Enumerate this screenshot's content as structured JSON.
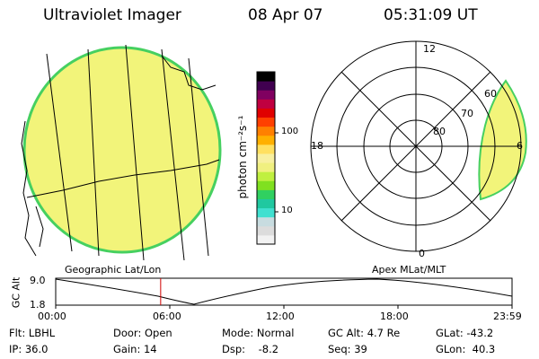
{
  "header": {
    "instrument": "Ultraviolet Imager",
    "date": "08 Apr 07",
    "time": "05:31:09 UT"
  },
  "colorbar": {
    "unit_label": "photon cm⁻²s⁻¹",
    "ticks": [
      "100",
      "10"
    ],
    "scale": "log",
    "colors": [
      "#f2f2f2",
      "#dcdcdc",
      "#c8dce0",
      "#40e0d0",
      "#20c8a0",
      "#30d060",
      "#80e020",
      "#c0f040",
      "#f0f080",
      "#f8f0a0",
      "#ffe060",
      "#ffb000",
      "#ff8000",
      "#ff4000",
      "#e00000",
      "#c00040",
      "#800060",
      "#400050",
      "#000000"
    ]
  },
  "left_panel": {
    "label": "Geographic Lat/Lon",
    "fill_color": "#f2f47a",
    "edge_color": "#46d060"
  },
  "right_panel": {
    "label": "Apex MLat/MLT",
    "mlt_labels": {
      "top": "12",
      "left": "18",
      "right": "6",
      "bottom": "0"
    },
    "lat_labels": [
      "80",
      "70",
      "60"
    ]
  },
  "altitude_plot": {
    "axis_label": "GC Alt",
    "y_ticks": [
      "9.0",
      "1.8"
    ],
    "x_ticks": [
      "00:00",
      "06:00",
      "12:00",
      "18:00",
      "23:59"
    ],
    "current_time_hours": 5.52,
    "line_color": "#d00000"
  },
  "footer": {
    "flt": "Flt: LBHL",
    "door": "Door: Open",
    "mode": "Mode: Normal",
    "gcalt": "GC Alt: 4.7 Re",
    "glat": "GLat: -43.2",
    "ip": "IP: 36.0",
    "gain": "Gain: 14",
    "dsp": "Dsp:    -8.2",
    "seq": "Seq: 39",
    "glon": "GLon:  40.3"
  }
}
